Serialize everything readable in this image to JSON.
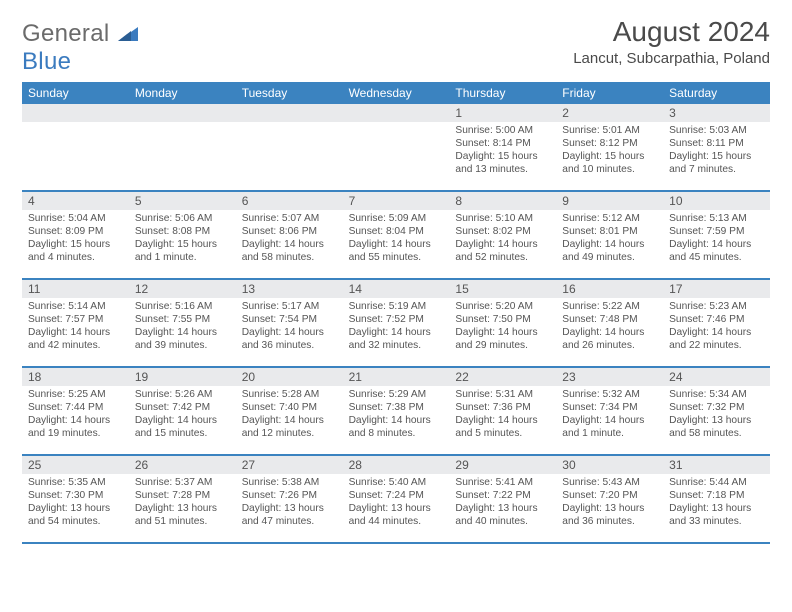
{
  "logo": {
    "text_general": "General",
    "text_blue": "Blue"
  },
  "header": {
    "month_title": "August 2024",
    "location": "Lancut, Subcarpathia, Poland"
  },
  "colors": {
    "header_bar": "#3b83c0",
    "daynum_bg": "#e9eaec",
    "text_dark": "#555555",
    "logo_gray": "#6b6b6b",
    "logo_blue": "#3b7bbf"
  },
  "day_names": [
    "Sunday",
    "Monday",
    "Tuesday",
    "Wednesday",
    "Thursday",
    "Friday",
    "Saturday"
  ],
  "weeks": [
    [
      null,
      null,
      null,
      null,
      {
        "n": "1",
        "sr": "Sunrise: 5:00 AM",
        "ss": "Sunset: 8:14 PM",
        "dl": "Daylight: 15 hours and 13 minutes."
      },
      {
        "n": "2",
        "sr": "Sunrise: 5:01 AM",
        "ss": "Sunset: 8:12 PM",
        "dl": "Daylight: 15 hours and 10 minutes."
      },
      {
        "n": "3",
        "sr": "Sunrise: 5:03 AM",
        "ss": "Sunset: 8:11 PM",
        "dl": "Daylight: 15 hours and 7 minutes."
      }
    ],
    [
      {
        "n": "4",
        "sr": "Sunrise: 5:04 AM",
        "ss": "Sunset: 8:09 PM",
        "dl": "Daylight: 15 hours and 4 minutes."
      },
      {
        "n": "5",
        "sr": "Sunrise: 5:06 AM",
        "ss": "Sunset: 8:08 PM",
        "dl": "Daylight: 15 hours and 1 minute."
      },
      {
        "n": "6",
        "sr": "Sunrise: 5:07 AM",
        "ss": "Sunset: 8:06 PM",
        "dl": "Daylight: 14 hours and 58 minutes."
      },
      {
        "n": "7",
        "sr": "Sunrise: 5:09 AM",
        "ss": "Sunset: 8:04 PM",
        "dl": "Daylight: 14 hours and 55 minutes."
      },
      {
        "n": "8",
        "sr": "Sunrise: 5:10 AM",
        "ss": "Sunset: 8:02 PM",
        "dl": "Daylight: 14 hours and 52 minutes."
      },
      {
        "n": "9",
        "sr": "Sunrise: 5:12 AM",
        "ss": "Sunset: 8:01 PM",
        "dl": "Daylight: 14 hours and 49 minutes."
      },
      {
        "n": "10",
        "sr": "Sunrise: 5:13 AM",
        "ss": "Sunset: 7:59 PM",
        "dl": "Daylight: 14 hours and 45 minutes."
      }
    ],
    [
      {
        "n": "11",
        "sr": "Sunrise: 5:14 AM",
        "ss": "Sunset: 7:57 PM",
        "dl": "Daylight: 14 hours and 42 minutes."
      },
      {
        "n": "12",
        "sr": "Sunrise: 5:16 AM",
        "ss": "Sunset: 7:55 PM",
        "dl": "Daylight: 14 hours and 39 minutes."
      },
      {
        "n": "13",
        "sr": "Sunrise: 5:17 AM",
        "ss": "Sunset: 7:54 PM",
        "dl": "Daylight: 14 hours and 36 minutes."
      },
      {
        "n": "14",
        "sr": "Sunrise: 5:19 AM",
        "ss": "Sunset: 7:52 PM",
        "dl": "Daylight: 14 hours and 32 minutes."
      },
      {
        "n": "15",
        "sr": "Sunrise: 5:20 AM",
        "ss": "Sunset: 7:50 PM",
        "dl": "Daylight: 14 hours and 29 minutes."
      },
      {
        "n": "16",
        "sr": "Sunrise: 5:22 AM",
        "ss": "Sunset: 7:48 PM",
        "dl": "Daylight: 14 hours and 26 minutes."
      },
      {
        "n": "17",
        "sr": "Sunrise: 5:23 AM",
        "ss": "Sunset: 7:46 PM",
        "dl": "Daylight: 14 hours and 22 minutes."
      }
    ],
    [
      {
        "n": "18",
        "sr": "Sunrise: 5:25 AM",
        "ss": "Sunset: 7:44 PM",
        "dl": "Daylight: 14 hours and 19 minutes."
      },
      {
        "n": "19",
        "sr": "Sunrise: 5:26 AM",
        "ss": "Sunset: 7:42 PM",
        "dl": "Daylight: 14 hours and 15 minutes."
      },
      {
        "n": "20",
        "sr": "Sunrise: 5:28 AM",
        "ss": "Sunset: 7:40 PM",
        "dl": "Daylight: 14 hours and 12 minutes."
      },
      {
        "n": "21",
        "sr": "Sunrise: 5:29 AM",
        "ss": "Sunset: 7:38 PM",
        "dl": "Daylight: 14 hours and 8 minutes."
      },
      {
        "n": "22",
        "sr": "Sunrise: 5:31 AM",
        "ss": "Sunset: 7:36 PM",
        "dl": "Daylight: 14 hours and 5 minutes."
      },
      {
        "n": "23",
        "sr": "Sunrise: 5:32 AM",
        "ss": "Sunset: 7:34 PM",
        "dl": "Daylight: 14 hours and 1 minute."
      },
      {
        "n": "24",
        "sr": "Sunrise: 5:34 AM",
        "ss": "Sunset: 7:32 PM",
        "dl": "Daylight: 13 hours and 58 minutes."
      }
    ],
    [
      {
        "n": "25",
        "sr": "Sunrise: 5:35 AM",
        "ss": "Sunset: 7:30 PM",
        "dl": "Daylight: 13 hours and 54 minutes."
      },
      {
        "n": "26",
        "sr": "Sunrise: 5:37 AM",
        "ss": "Sunset: 7:28 PM",
        "dl": "Daylight: 13 hours and 51 minutes."
      },
      {
        "n": "27",
        "sr": "Sunrise: 5:38 AM",
        "ss": "Sunset: 7:26 PM",
        "dl": "Daylight: 13 hours and 47 minutes."
      },
      {
        "n": "28",
        "sr": "Sunrise: 5:40 AM",
        "ss": "Sunset: 7:24 PM",
        "dl": "Daylight: 13 hours and 44 minutes."
      },
      {
        "n": "29",
        "sr": "Sunrise: 5:41 AM",
        "ss": "Sunset: 7:22 PM",
        "dl": "Daylight: 13 hours and 40 minutes."
      },
      {
        "n": "30",
        "sr": "Sunrise: 5:43 AM",
        "ss": "Sunset: 7:20 PM",
        "dl": "Daylight: 13 hours and 36 minutes."
      },
      {
        "n": "31",
        "sr": "Sunrise: 5:44 AM",
        "ss": "Sunset: 7:18 PM",
        "dl": "Daylight: 13 hours and 33 minutes."
      }
    ]
  ]
}
